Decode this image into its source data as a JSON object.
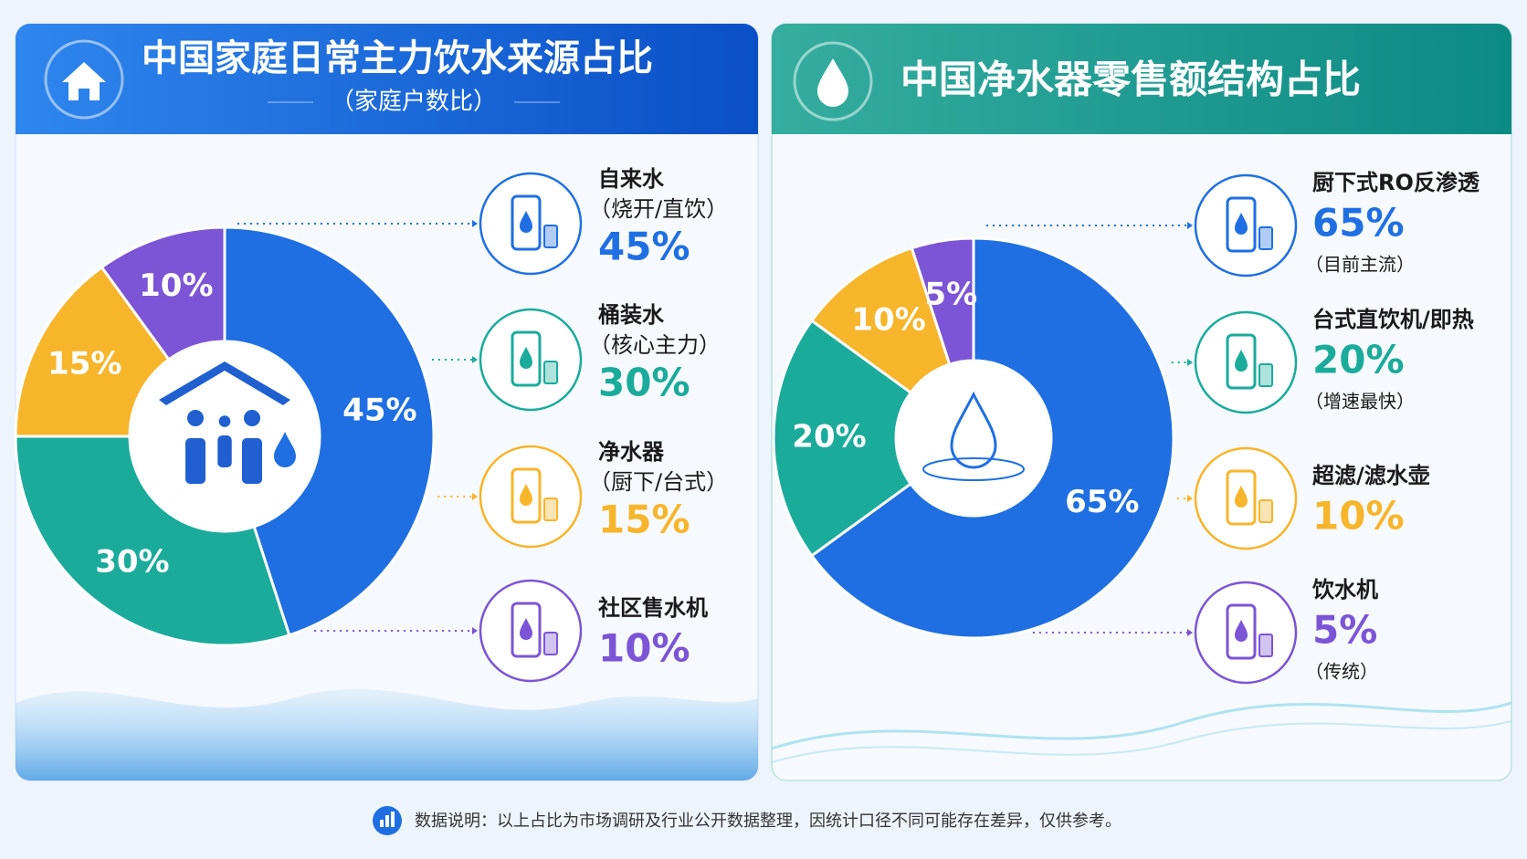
{
  "chart_data": [
    {
      "type": "donut",
      "title": "中国家庭日常主力饮水来源占比",
      "subtitle": "（家庭户数比）",
      "categories": [
        "自来水",
        "桶装水",
        "净水器",
        "社区售水机"
      ],
      "notes": [
        "（烧开/直饮）",
        "（核心主力）",
        "（厨下/台式）",
        null
      ],
      "values": [
        45,
        30,
        15,
        10
      ],
      "value_labels": [
        "45%",
        "30%",
        "15%",
        "10%"
      ],
      "colors": [
        "#1f6fe3",
        "#1aab9b",
        "#f7b52b",
        "#7b55d6"
      ]
    },
    {
      "type": "donut",
      "title": "中国净水器零售额结构占比",
      "categories": [
        "厨下式RO反渗透",
        "台式直饮机/即热",
        "超滤/滤水壶",
        "饮水机"
      ],
      "notes": [
        "（目前主流）",
        "（增速最快）",
        null,
        "（传统）"
      ],
      "values": [
        65,
        20,
        10,
        5
      ],
      "value_labels": [
        "65%",
        "20%",
        "10%",
        "5%"
      ],
      "colors": [
        "#1f6fe3",
        "#1aab9b",
        "#f7b52b",
        "#7b55d6"
      ]
    }
  ],
  "footnote": "数据说明：以上占比为市场调研及行业公开数据整理，因统计口径不同可能存在差异，仅供参考。"
}
